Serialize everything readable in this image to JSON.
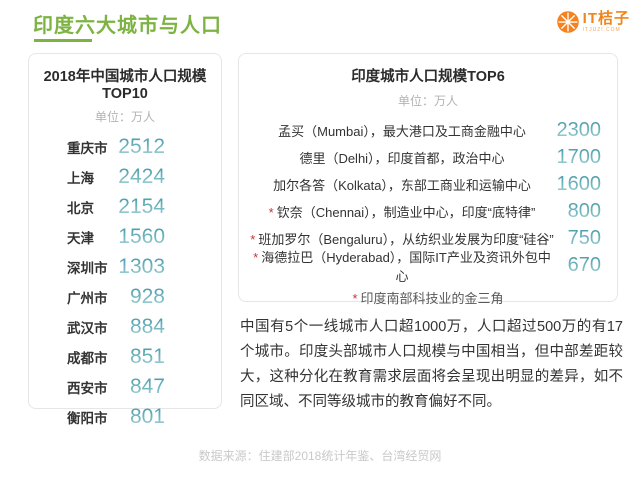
{
  "page": {
    "title": "印度六大城市与人口",
    "source": "数据来源：住建部2018统计年鉴、台湾经贸网"
  },
  "logo": {
    "name": "IT桔子",
    "domain": "ITJUZI.COM",
    "brand_color": "#f08519"
  },
  "colors": {
    "accent_green": "#7cb342",
    "number_teal": "#5fa7b0",
    "star_red": "#cc3333"
  },
  "china_panel": {
    "title": "2018年中国城市人口规模TOP10",
    "unit": "单位：万人",
    "rows": [
      {
        "city": "重庆市",
        "value": "2512"
      },
      {
        "city": "上海",
        "value": "2424"
      },
      {
        "city": "北京",
        "value": "2154"
      },
      {
        "city": "天津",
        "value": "1560"
      },
      {
        "city": "深圳市",
        "value": "1303"
      },
      {
        "city": "广州市",
        "value": "928"
      },
      {
        "city": "武汉市",
        "value": "884"
      },
      {
        "city": "成都市",
        "value": "851"
      },
      {
        "city": "西安市",
        "value": "847"
      },
      {
        "city": "衡阳市",
        "value": "801"
      }
    ]
  },
  "india_panel": {
    "title": "印度城市人口规模TOP6",
    "unit": "单位：万人",
    "rows": [
      {
        "star": "",
        "desc": "孟买（Mumbai），最大港口及工商金融中心",
        "value": "2300"
      },
      {
        "star": "",
        "desc": "德里（Delhi），印度首都，政治中心",
        "value": "1700"
      },
      {
        "star": "",
        "desc": "加尔各答（Kolkata），东部工商业和运输中心",
        "value": "1600"
      },
      {
        "star": "*",
        "desc": "钦奈（Chennai），制造业中心，印度“底特律”",
        "value": "800"
      },
      {
        "star": "*",
        "desc": "班加罗尔（Bengaluru），从纺织业发展为印度“硅谷”",
        "value": "750"
      },
      {
        "star": "*",
        "desc": "海德拉巴（Hyderabad），国际IT产业及资讯外包中心",
        "value": "670"
      }
    ],
    "footnote_star": "*",
    "footnote": "印度南部科技业的金三角"
  },
  "summary": "中国有5个一线城市人口超1000万，人口超过500万的有17 个城市。印度头部城市人口规模与中国相当，但中部差距较大，这种分化在教育需求层面将会呈现出明显的差异，如不同区域、不同等级城市的教育偏好不同。",
  "chart_data": [
    {
      "type": "table",
      "title": "2018年中国城市人口规模TOP10",
      "unit": "万人",
      "categories": [
        "重庆市",
        "上海",
        "北京",
        "天津",
        "深圳市",
        "广州市",
        "武汉市",
        "成都市",
        "西安市",
        "衡阳市"
      ],
      "values": [
        2512,
        2424,
        2154,
        1560,
        1303,
        928,
        884,
        851,
        847,
        801
      ]
    },
    {
      "type": "table",
      "title": "印度城市人口规模TOP6",
      "unit": "万人",
      "categories": [
        "孟买（Mumbai）",
        "德里（Delhi）",
        "加尔各答（Kolkata）",
        "钦奈（Chennai）",
        "班加罗尔（Bengaluru）",
        "海德拉巴（Hyderabad）"
      ],
      "values": [
        2300,
        1700,
        1600,
        800,
        750,
        670
      ],
      "annotations": [
        "* 印度南部科技业的金三角"
      ]
    }
  ]
}
